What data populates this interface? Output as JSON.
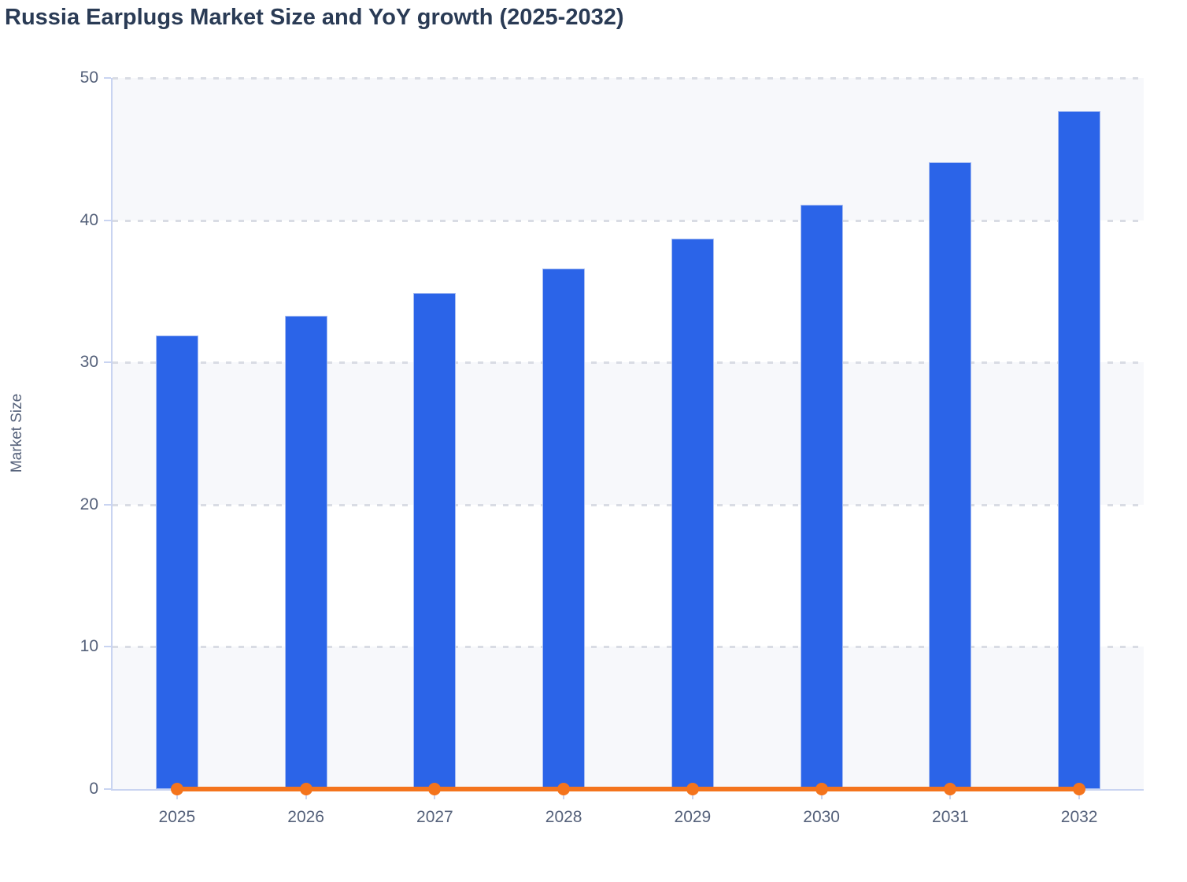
{
  "title": "Russia Earplugs Market Size and YoY growth (2025-2032)",
  "y_axis_label": "Market Size",
  "colors": {
    "title_text": "#2a3b55",
    "axis_text": "#55617a",
    "axis_line": "#c9d4f1",
    "gridline": "#d9dce4",
    "band_shade": "#f7f8fb",
    "band_plain": "#ffffff",
    "bar": "#2b64e8",
    "bar_border": "#a9bef2",
    "line": "#f4741d"
  },
  "chart_data": {
    "type": "bar",
    "title": "Russia Earplugs Market Size and YoY growth (2025-2032)",
    "xlabel": "",
    "ylabel": "Market Size",
    "categories": [
      "2025",
      "2026",
      "2027",
      "2028",
      "2029",
      "2030",
      "2031",
      "2032"
    ],
    "series": [
      {
        "name": "Market Size",
        "type": "bar",
        "values": [
          31.9,
          33.3,
          34.9,
          36.6,
          38.7,
          41.1,
          44.1,
          47.7
        ]
      },
      {
        "name": "YoY growth",
        "type": "line",
        "values": [
          0,
          0,
          0,
          0,
          0,
          0,
          0,
          0
        ]
      }
    ],
    "ylim": [
      0,
      50
    ],
    "yticks": [
      0,
      10,
      20,
      30,
      40,
      50
    ],
    "grid": "horizontal-dashed",
    "plot_bands": "alternating shaded every 10 units starting at 0",
    "legend": "none"
  }
}
